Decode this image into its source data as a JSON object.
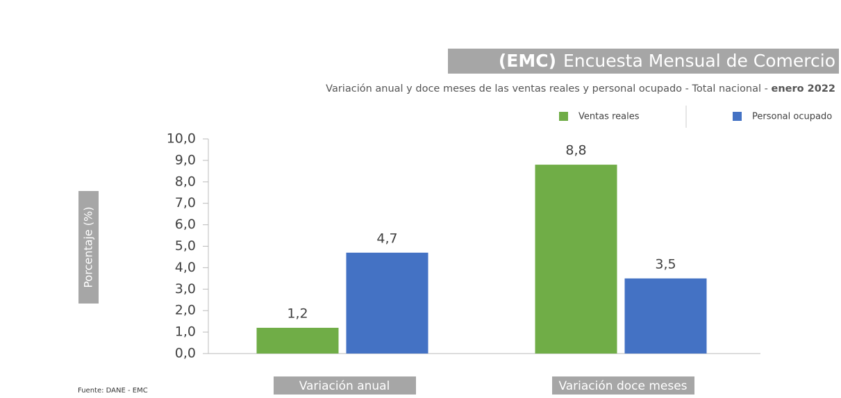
{
  "chart_data": {
    "type": "bar",
    "title_abbr": "(EMC)",
    "title": "Encuesta Mensual de Comercio",
    "subtitle": "Variación anual y doce meses de las ventas reales y personal ocupado - Total nacional - ",
    "subtitle_period": "enero 2022",
    "y_label": "Porcentaje (%)",
    "source": "Fuente: DANE - EMC",
    "categories": [
      "Variación anual",
      "Variación doce meses"
    ],
    "series": [
      {
        "name": "Ventas reales",
        "color": "#70ad47",
        "values": [
          1.2,
          8.8
        ],
        "value_labels": [
          "1,2",
          "8,8"
        ]
      },
      {
        "name": "Personal ocupado",
        "color": "#4472c4",
        "values": [
          4.7,
          3.5
        ],
        "value_labels": [
          "4,7",
          "3,5"
        ]
      }
    ],
    "ylim": [
      0,
      10
    ],
    "yticks": [
      {
        "value": 0,
        "label": "0,0"
      },
      {
        "value": 1,
        "label": "1,0"
      },
      {
        "value": 2,
        "label": "2,0"
      },
      {
        "value": 3,
        "label": "3,0"
      },
      {
        "value": 4,
        "label": "4,0"
      },
      {
        "value": 5,
        "label": "5,0"
      },
      {
        "value": 6,
        "label": "6,0"
      },
      {
        "value": 7,
        "label": "7,0"
      },
      {
        "value": 8,
        "label": "8,0"
      },
      {
        "value": 9,
        "label": "9,0"
      },
      {
        "value": 10,
        "label": "10,0"
      }
    ],
    "legend": "top-right"
  }
}
